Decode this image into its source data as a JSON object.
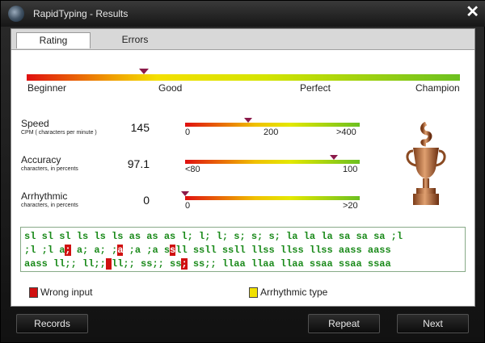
{
  "window": {
    "title": "RapidTyping - Results"
  },
  "tabs": [
    {
      "label": "Rating"
    },
    {
      "label": "Errors"
    }
  ],
  "rating": {
    "labels": [
      "Beginner",
      "Good",
      "Perfect",
      "Champion"
    ],
    "level_percent": 27
  },
  "metrics": {
    "speed": {
      "label": "Speed",
      "sub": "CPM ( characters per minute )",
      "value": "145",
      "ticks": [
        "0",
        "200",
        ">400"
      ],
      "level_percent": 36
    },
    "accuracy": {
      "label": "Accuracy",
      "sub": "characters, in percents",
      "value": "97.1",
      "ticks": [
        "<80",
        "100"
      ],
      "level_percent": 85
    },
    "arrhythmic": {
      "label": "Arrhythmic",
      "sub": "characters, in percents",
      "value": "0",
      "ticks": [
        "0",
        ">20"
      ],
      "level_percent": 0
    }
  },
  "text_lines": [
    [
      {
        "t": "sl sl sl ls ls ls as as as l; l; l; s; s; s; la la la sa sa sa ;l"
      }
    ],
    [
      {
        "t": ";l ;l a"
      },
      {
        "t": ";",
        "err": true
      },
      {
        "t": " a; a; ;"
      },
      {
        "t": "a",
        "err": true
      },
      {
        "t": " ;a ;a s"
      },
      {
        "t": "s",
        "err": true
      },
      {
        "t": "ll ssll ssll llss llss llss aass aass"
      }
    ],
    [
      {
        "t": "aass ll;; ll;;"
      },
      {
        "t": " ",
        "err": true
      },
      {
        "t": "ll;; ss;; ss"
      },
      {
        "t": ";",
        "err": true
      },
      {
        "t": " ss;; llaa llaa llaa ssaa ssaa ssaa"
      }
    ]
  ],
  "legend": {
    "wrong_input": "Wrong input",
    "arrhythmic_type": "Arrhythmic type"
  },
  "colors": {
    "wrong": "#d01010",
    "arrhythmic": "#f0e000",
    "text": "#1a8a1a"
  },
  "buttons": {
    "records": "Records",
    "repeat": "Repeat",
    "next": "Next"
  }
}
